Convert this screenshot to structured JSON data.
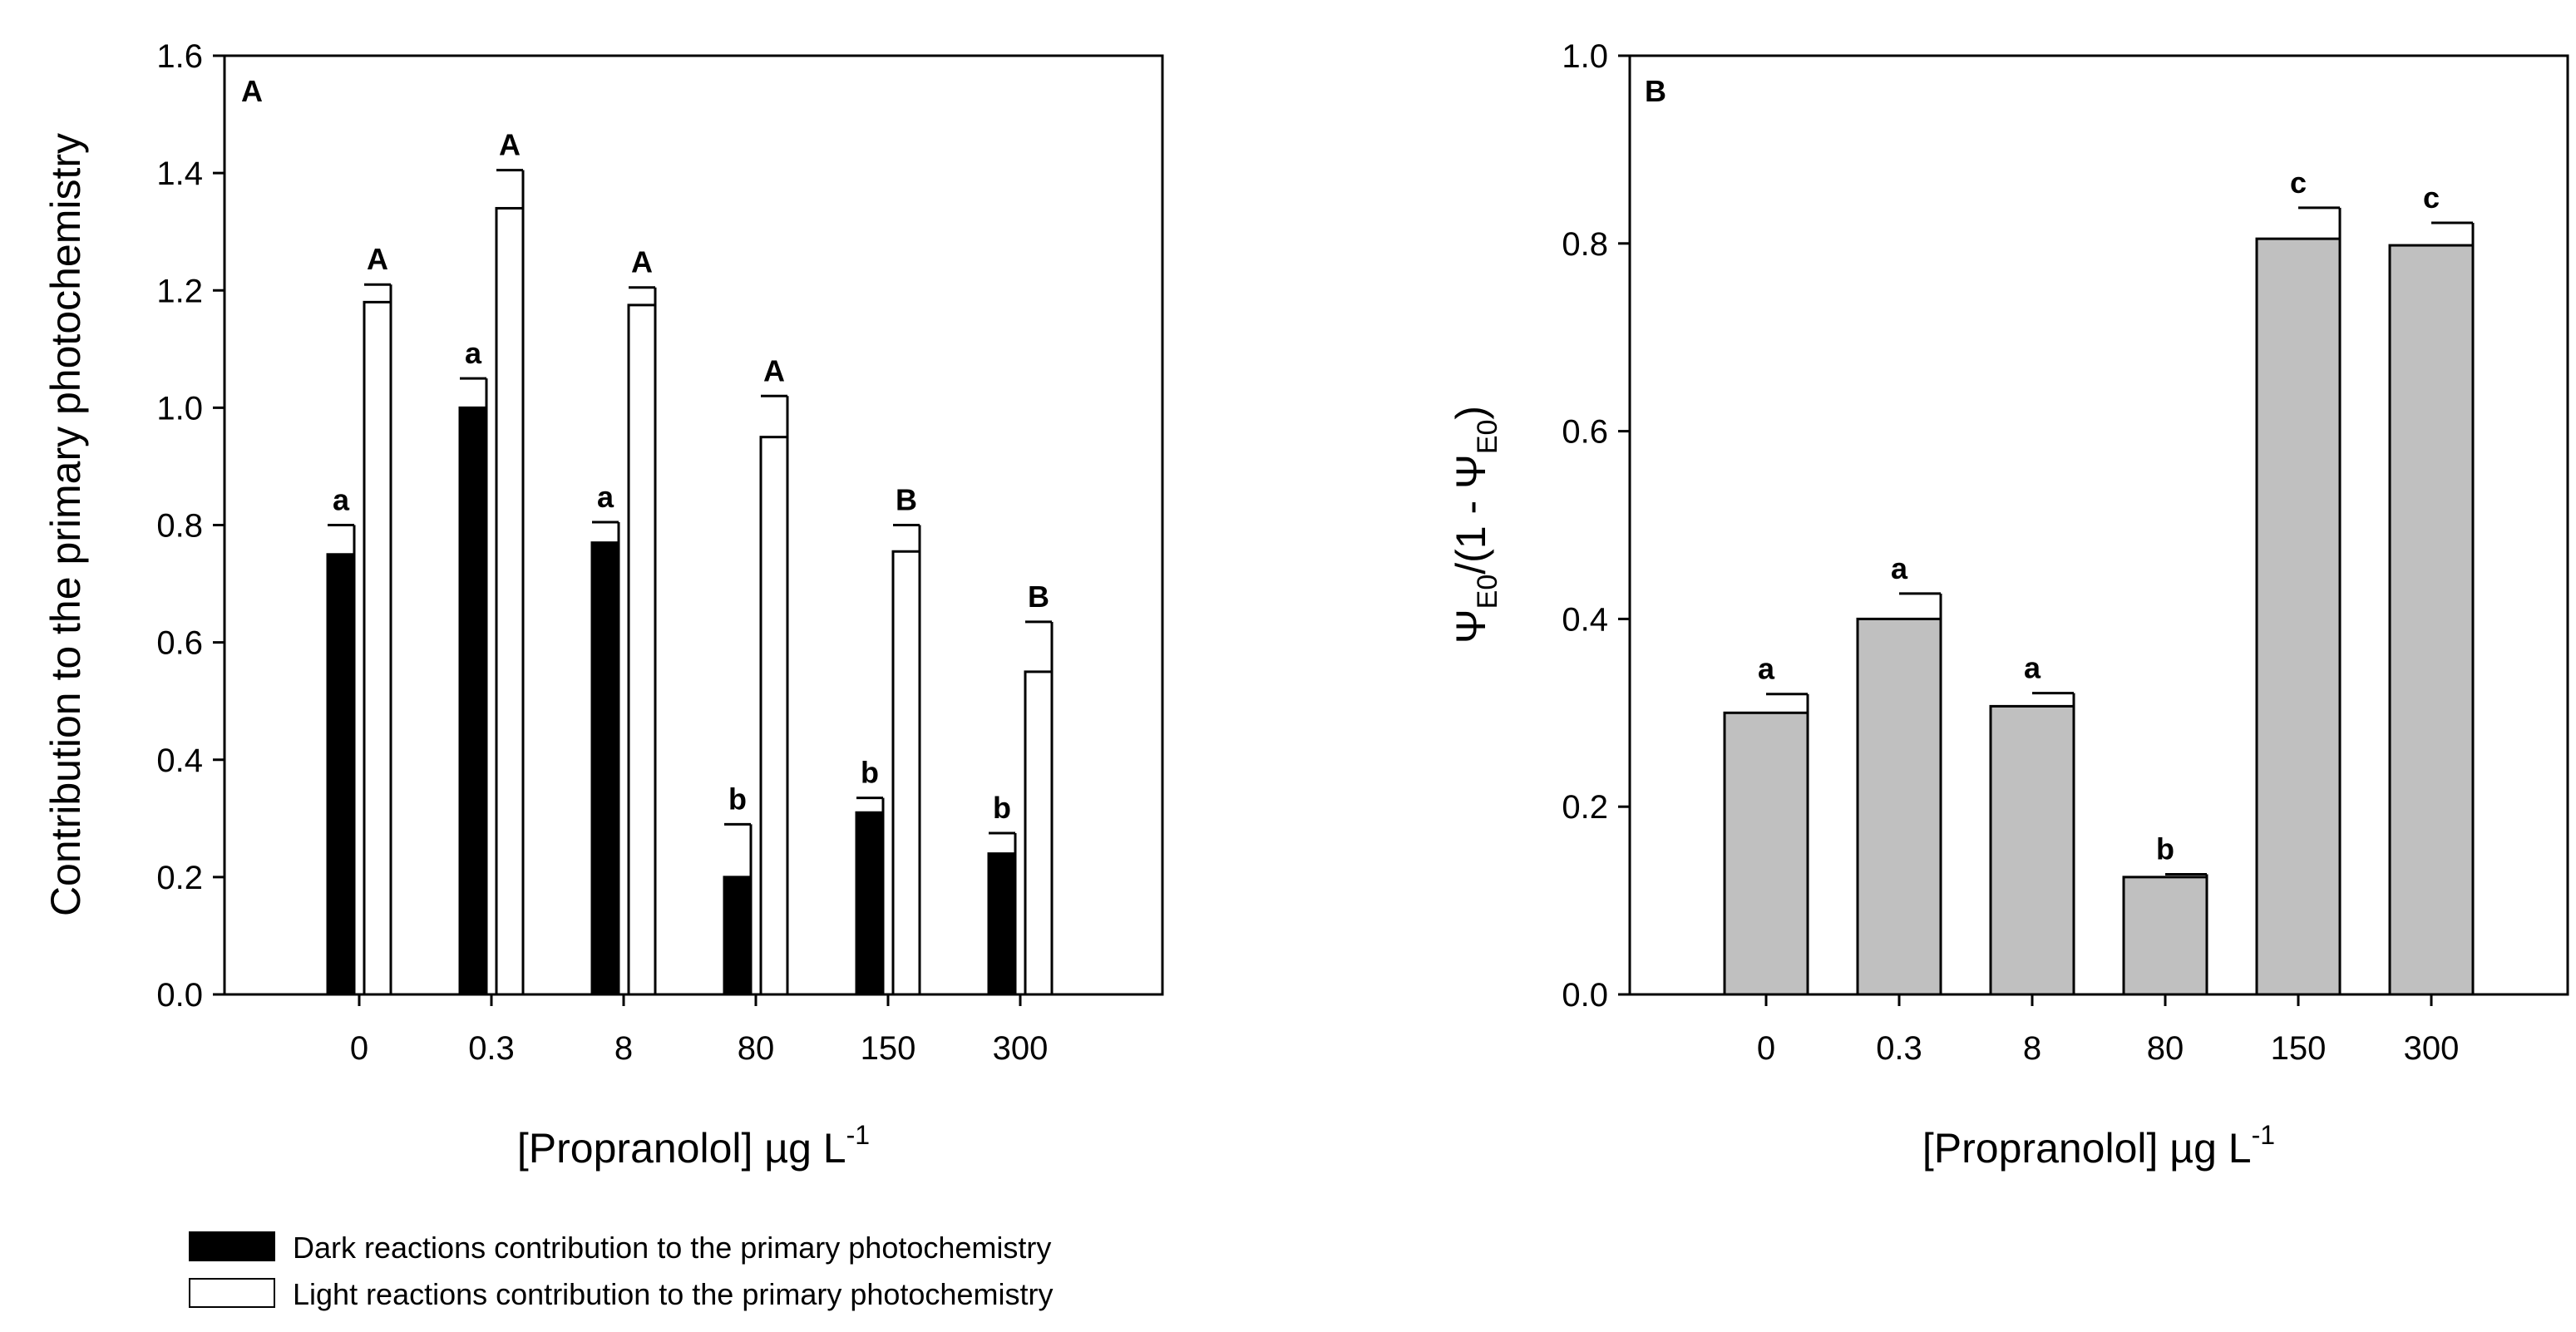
{
  "chart_data": [
    {
      "type": "bar",
      "panel": "A",
      "ylabel": "Contribution to the primary photochemistry",
      "xlabel_prefix": "[Propranolol] ",
      "xlabel_mu": "µ",
      "xlabel_unit": "g L",
      "xlabel_exp": "-1",
      "ylim": [
        0,
        1.6
      ],
      "yticks": [
        "0.0",
        "0.2",
        "0.4",
        "0.6",
        "0.8",
        "1.0",
        "1.2",
        "1.4",
        "1.6"
      ],
      "categories": [
        "0",
        "0.3",
        "8",
        "80",
        "150",
        "300"
      ],
      "series": [
        {
          "name": "Dark reactions contribution to the primary photochemistry",
          "fill": "#000000",
          "values": [
            0.75,
            1.0,
            0.77,
            0.2,
            0.31,
            0.24
          ],
          "errors": [
            0.05,
            0.05,
            0.035,
            0.09,
            0.025,
            0.035
          ],
          "labels": [
            "a",
            "a",
            "a",
            "b",
            "b",
            "b"
          ]
        },
        {
          "name": "Light reactions contribution to the primary photochemistry",
          "fill": "#ffffff",
          "values": [
            1.18,
            1.34,
            1.175,
            0.95,
            0.755,
            0.55
          ],
          "errors": [
            0.03,
            0.065,
            0.03,
            0.07,
            0.045,
            0.085
          ],
          "labels": [
            "A",
            "A",
            "A",
            "A",
            "B",
            "B"
          ]
        }
      ]
    },
    {
      "type": "bar",
      "panel": "B",
      "ylabel_psi": "Ψ",
      "ylabel_sub": "E0",
      "ylabel_mid": "/(1 - ",
      "ylabel_close": ")",
      "xlabel_prefix": "[Propranolol] ",
      "xlabel_mu": "µ",
      "xlabel_unit": "g L",
      "xlabel_exp": "-1",
      "ylim": [
        0,
        1.0
      ],
      "yticks": [
        "0.0",
        "0.2",
        "0.4",
        "0.6",
        "0.8",
        "1.0"
      ],
      "categories": [
        "0",
        "0.3",
        "8",
        "80",
        "150",
        "300"
      ],
      "series": [
        {
          "name": "ψE0/(1 - ψE0)",
          "fill": "#c0c0c0",
          "values": [
            0.3,
            0.4,
            0.307,
            0.125,
            0.805,
            0.798
          ],
          "errors": [
            0.02,
            0.027,
            0.014,
            0.003,
            0.033,
            0.024
          ],
          "labels": [
            "a",
            "a",
            "a",
            "b",
            "c",
            "c"
          ]
        }
      ]
    }
  ]
}
